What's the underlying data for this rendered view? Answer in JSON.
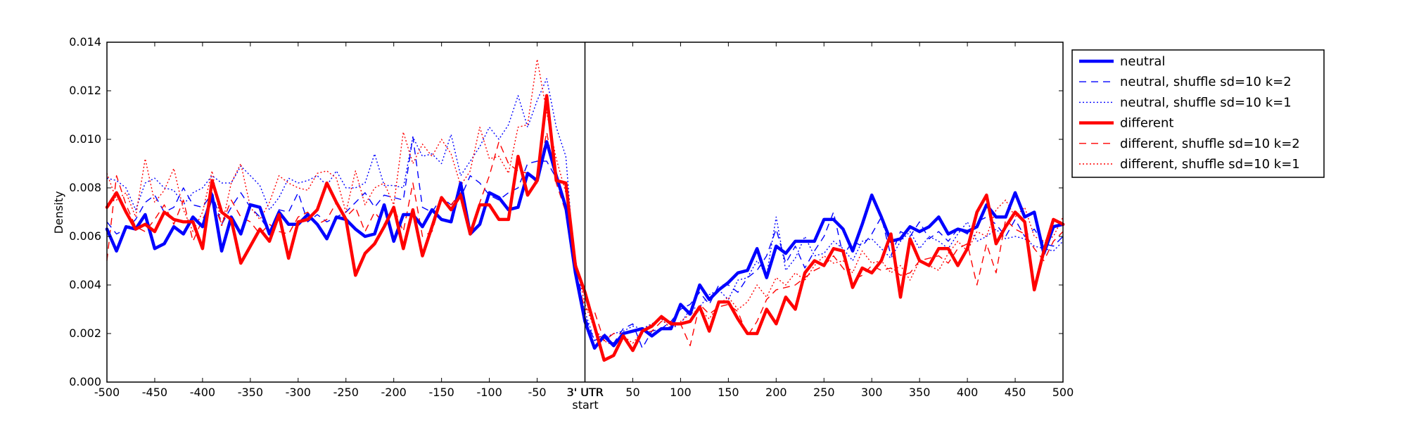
{
  "chart_data": {
    "type": "line",
    "title": "",
    "xlabel_left": "",
    "xlabel_center_line1": "3' UTR",
    "xlabel_center_line2": "start",
    "ylabel": "Density",
    "grid": false,
    "legend_position": "top-right (outside plot)",
    "x_ticks": [
      "-500",
      "-450",
      "-400",
      "-350",
      "-300",
      "-250",
      "-200",
      "-150",
      "-100",
      "-50",
      "3' UTR",
      "50",
      "100",
      "150",
      "200",
      "250",
      "300",
      "350",
      "400",
      "450",
      "500"
    ],
    "y_ticks": [
      "0.000",
      "0.002",
      "0.004",
      "0.006",
      "0.008",
      "0.010",
      "0.012",
      "0.014"
    ],
    "xlim": [
      -500,
      500
    ],
    "ylim": [
      0,
      0.014
    ],
    "divider_x": 0,
    "x": [
      -500,
      -490,
      -480,
      -470,
      -460,
      -450,
      -440,
      -430,
      -420,
      -410,
      -400,
      -390,
      -380,
      -370,
      -360,
      -350,
      -340,
      -330,
      -320,
      -310,
      -300,
      -290,
      -280,
      -270,
      -260,
      -250,
      -240,
      -230,
      -220,
      -210,
      -200,
      -190,
      -180,
      -170,
      -160,
      -150,
      -140,
      -130,
      -120,
      -110,
      -100,
      -90,
      -80,
      -70,
      -60,
      -50,
      -40,
      -30,
      -20,
      -10,
      0,
      10,
      20,
      30,
      40,
      50,
      60,
      70,
      80,
      90,
      100,
      110,
      120,
      130,
      140,
      150,
      160,
      170,
      180,
      190,
      200,
      210,
      220,
      230,
      240,
      250,
      260,
      270,
      280,
      290,
      300,
      310,
      320,
      330,
      340,
      350,
      360,
      370,
      380,
      390,
      400,
      410,
      420,
      430,
      440,
      450,
      460,
      470,
      480,
      490,
      500
    ],
    "series": [
      {
        "name": "neutral",
        "color": "#0000ff",
        "style": "solid",
        "width": 4.5,
        "values": [
          0.0063,
          0.0054,
          0.0064,
          0.0063,
          0.0069,
          0.0055,
          0.0057,
          0.0064,
          0.0061,
          0.0068,
          0.0064,
          0.0077,
          0.0054,
          0.0068,
          0.0061,
          0.0073,
          0.0072,
          0.0061,
          0.007,
          0.0065,
          0.0065,
          0.0069,
          0.0065,
          0.0059,
          0.0068,
          0.0067,
          0.0063,
          0.006,
          0.0061,
          0.0073,
          0.0058,
          0.0069,
          0.0069,
          0.0064,
          0.0071,
          0.0067,
          0.0066,
          0.0082,
          0.0061,
          0.0065,
          0.0078,
          0.0076,
          0.0071,
          0.0072,
          0.0086,
          0.0083,
          0.0099,
          0.0085,
          0.0072,
          0.0045,
          0.0025,
          0.0014,
          0.0019,
          0.0015,
          0.002,
          0.0021,
          0.0022,
          0.0019,
          0.0022,
          0.0022,
          0.0032,
          0.0028,
          0.004,
          0.0034,
          0.0038,
          0.0041,
          0.0045,
          0.0046,
          0.0055,
          0.0043,
          0.0056,
          0.0053,
          0.0058,
          0.0058,
          0.0058,
          0.0067,
          0.0067,
          0.0063,
          0.0054,
          0.0065,
          0.0077,
          0.0068,
          0.0058,
          0.0059,
          0.0064,
          0.0062,
          0.0064,
          0.0068,
          0.0061,
          0.0063,
          0.0062,
          0.0064,
          0.0073,
          0.0068,
          0.0068,
          0.0078,
          0.0068,
          0.007,
          0.0053,
          0.0064,
          0.0065
        ]
      },
      {
        "name": "neutral, shuffle sd=10 k=2",
        "color": "#0000ff",
        "style": "dashed",
        "width": 1.4,
        "values": [
          0.0066,
          0.0061,
          0.0063,
          0.0067,
          0.0074,
          0.0077,
          0.007,
          0.0072,
          0.008,
          0.0073,
          0.0072,
          0.0078,
          0.0065,
          0.0072,
          0.0078,
          0.0072,
          0.0068,
          0.0062,
          0.0071,
          0.007,
          0.0078,
          0.0066,
          0.0069,
          0.0066,
          0.0068,
          0.007,
          0.0074,
          0.0078,
          0.0072,
          0.0077,
          0.0076,
          0.0075,
          0.0101,
          0.0072,
          0.007,
          0.0076,
          0.0073,
          0.0076,
          0.0085,
          0.0082,
          0.0077,
          0.0075,
          0.0078,
          0.008,
          0.009,
          0.0091,
          0.0091,
          0.0084,
          0.0073,
          0.0051,
          0.0027,
          0.0017,
          0.002,
          0.0016,
          0.0022,
          0.0024,
          0.0014,
          0.0021,
          0.0022,
          0.0025,
          0.003,
          0.0032,
          0.0037,
          0.0032,
          0.004,
          0.004,
          0.0037,
          0.0043,
          0.0046,
          0.0052,
          0.0063,
          0.0049,
          0.0056,
          0.0047,
          0.0054,
          0.006,
          0.007,
          0.0052,
          0.0058,
          0.0056,
          0.0061,
          0.0068,
          0.0052,
          0.0062,
          0.006,
          0.0066,
          0.0059,
          0.0062,
          0.0058,
          0.0063,
          0.0061,
          0.0066,
          0.0068,
          0.0065,
          0.006,
          0.0067,
          0.006,
          0.0063,
          0.0057,
          0.0056,
          0.006
        ]
      },
      {
        "name": "neutral, shuffle sd=10 k=1",
        "color": "#0000ff",
        "style": "dotted",
        "width": 1.4,
        "values": [
          0.0084,
          0.0083,
          0.008,
          0.0071,
          0.0082,
          0.0084,
          0.008,
          0.0079,
          0.0073,
          0.0078,
          0.008,
          0.0085,
          0.0082,
          0.0082,
          0.0089,
          0.0085,
          0.0081,
          0.0071,
          0.0076,
          0.0084,
          0.0082,
          0.0083,
          0.0085,
          0.0081,
          0.0087,
          0.008,
          0.008,
          0.0082,
          0.0094,
          0.0081,
          0.0081,
          0.008,
          0.0101,
          0.0093,
          0.0094,
          0.009,
          0.0102,
          0.0085,
          0.0091,
          0.0097,
          0.0105,
          0.01,
          0.0106,
          0.0118,
          0.0105,
          0.0116,
          0.0125,
          0.0105,
          0.0093,
          0.0044,
          0.0029,
          0.0017,
          0.0018,
          0.002,
          0.0021,
          0.0023,
          0.0022,
          0.0024,
          0.0026,
          0.0022,
          0.0024,
          0.003,
          0.0031,
          0.0036,
          0.0038,
          0.0034,
          0.0042,
          0.0043,
          0.005,
          0.0044,
          0.0068,
          0.0046,
          0.0051,
          0.006,
          0.0052,
          0.0053,
          0.0058,
          0.0055,
          0.005,
          0.0058,
          0.0059,
          0.0055,
          0.0051,
          0.0058,
          0.0062,
          0.0055,
          0.006,
          0.0058,
          0.0055,
          0.0061,
          0.0066,
          0.0058,
          0.006,
          0.0063,
          0.0059,
          0.006,
          0.0059,
          0.0056,
          0.0055,
          0.0054,
          0.0058
        ]
      },
      {
        "name": "different",
        "color": "#ff0000",
        "style": "solid",
        "width": 4.5,
        "values": [
          0.0072,
          0.0078,
          0.007,
          0.0063,
          0.0065,
          0.0062,
          0.007,
          0.0067,
          0.0066,
          0.0066,
          0.0055,
          0.0083,
          0.007,
          0.0067,
          0.0049,
          0.0056,
          0.0063,
          0.0058,
          0.0069,
          0.0051,
          0.0066,
          0.0067,
          0.0071,
          0.0082,
          0.0074,
          0.0067,
          0.0044,
          0.0053,
          0.0057,
          0.0064,
          0.0072,
          0.0055,
          0.0071,
          0.0052,
          0.0064,
          0.0076,
          0.0071,
          0.0077,
          0.0061,
          0.0073,
          0.0073,
          0.0067,
          0.0067,
          0.0093,
          0.0077,
          0.0083,
          0.0118,
          0.0083,
          0.0082,
          0.0048,
          0.0037,
          0.0023,
          0.0009,
          0.0011,
          0.0019,
          0.0013,
          0.0021,
          0.0023,
          0.0027,
          0.0024,
          0.0024,
          0.0025,
          0.0031,
          0.0021,
          0.0033,
          0.0033,
          0.0026,
          0.002,
          0.002,
          0.003,
          0.0024,
          0.0035,
          0.003,
          0.0045,
          0.005,
          0.0048,
          0.0055,
          0.0054,
          0.0039,
          0.0047,
          0.0045,
          0.005,
          0.0061,
          0.0035,
          0.0059,
          0.005,
          0.0048,
          0.0055,
          0.0055,
          0.0048,
          0.0055,
          0.007,
          0.0077,
          0.0057,
          0.0064,
          0.007,
          0.0066,
          0.0038,
          0.0054,
          0.0067,
          0.0065
        ]
      },
      {
        "name": "different, shuffle sd=10 k=2",
        "color": "#ff0000",
        "style": "dashed",
        "width": 1.4,
        "values": [
          0.005,
          0.0085,
          0.0073,
          0.0064,
          0.0062,
          0.0067,
          0.0073,
          0.0065,
          0.0075,
          0.0058,
          0.0067,
          0.0075,
          0.0065,
          0.0075,
          0.0068,
          0.0066,
          0.0061,
          0.0065,
          0.0062,
          0.0061,
          0.0068,
          0.007,
          0.0065,
          0.0067,
          0.0074,
          0.0068,
          0.0072,
          0.0062,
          0.007,
          0.0065,
          0.0072,
          0.0062,
          0.0082,
          0.006,
          0.0062,
          0.0075,
          0.0073,
          0.0078,
          0.0062,
          0.0074,
          0.0085,
          0.0099,
          0.009,
          0.0087,
          0.0086,
          0.0082,
          0.0103,
          0.0082,
          0.007,
          0.0045,
          0.003,
          0.0029,
          0.0017,
          0.002,
          0.002,
          0.0013,
          0.002,
          0.0021,
          0.0025,
          0.0025,
          0.0024,
          0.0015,
          0.0032,
          0.0028,
          0.0031,
          0.0032,
          0.0029,
          0.0019,
          0.0025,
          0.0034,
          0.0038,
          0.0039,
          0.004,
          0.0043,
          0.0046,
          0.0048,
          0.0052,
          0.0047,
          0.0042,
          0.0044,
          0.0048,
          0.0046,
          0.0047,
          0.0044,
          0.0045,
          0.005,
          0.0051,
          0.0052,
          0.0049,
          0.0055,
          0.0057,
          0.004,
          0.0057,
          0.0045,
          0.0067,
          0.0063,
          0.0061,
          0.0055,
          0.005,
          0.0058,
          0.0062
        ]
      },
      {
        "name": "different, shuffle sd=10 k=1",
        "color": "#ff0000",
        "style": "dotted",
        "width": 1.4,
        "values": [
          0.0086,
          0.0075,
          0.0078,
          0.0068,
          0.0092,
          0.0074,
          0.0079,
          0.0088,
          0.0071,
          0.0062,
          0.007,
          0.0087,
          0.0064,
          0.0082,
          0.009,
          0.0072,
          0.0067,
          0.0074,
          0.0085,
          0.0082,
          0.008,
          0.0079,
          0.0086,
          0.0087,
          0.0084,
          0.007,
          0.0087,
          0.0073,
          0.008,
          0.0082,
          0.0073,
          0.0103,
          0.009,
          0.0098,
          0.0093,
          0.01,
          0.0094,
          0.0081,
          0.0087,
          0.0105,
          0.0092,
          0.0093,
          0.0086,
          0.0105,
          0.0106,
          0.0133,
          0.0111,
          0.0092,
          0.0078,
          0.005,
          0.0032,
          0.0022,
          0.0017,
          0.0015,
          0.0019,
          0.0016,
          0.0021,
          0.0024,
          0.0026,
          0.0022,
          0.0025,
          0.0028,
          0.003,
          0.0026,
          0.0032,
          0.0035,
          0.003,
          0.0033,
          0.004,
          0.0035,
          0.0043,
          0.004,
          0.0045,
          0.0042,
          0.0048,
          0.0052,
          0.0049,
          0.005,
          0.0045,
          0.0054,
          0.0049,
          0.005,
          0.0045,
          0.0048,
          0.0042,
          0.005,
          0.0048,
          0.0046,
          0.0053,
          0.0058,
          0.0054,
          0.0062,
          0.006,
          0.0071,
          0.0075,
          0.0068,
          0.0072,
          0.006,
          0.0058,
          0.006,
          0.0068
        ]
      }
    ]
  }
}
